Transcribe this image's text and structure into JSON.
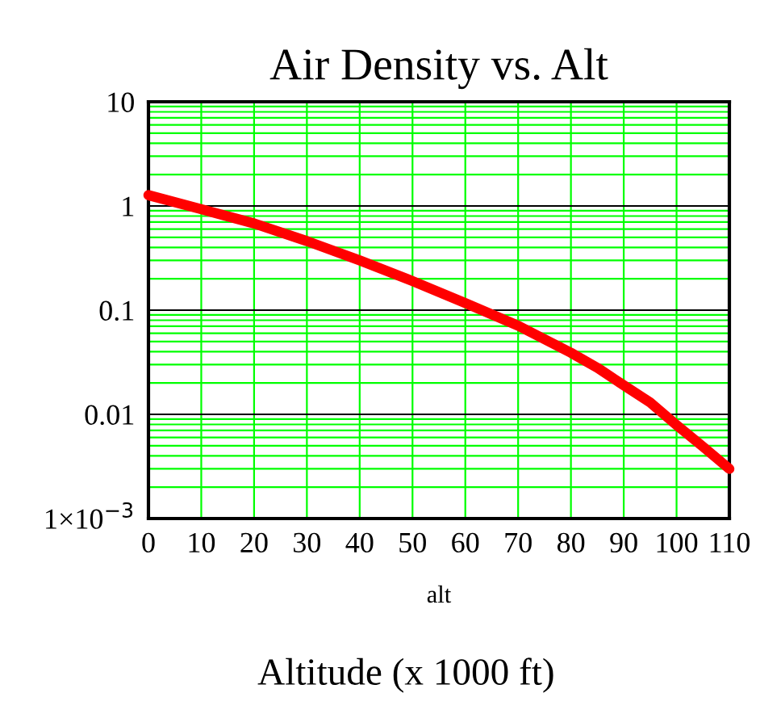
{
  "chart_data": {
    "type": "line",
    "title": "Air Density vs. Alt",
    "xlabel": "alt",
    "annotations": [
      "Altitude (x 1000 ft)"
    ],
    "x": [
      0,
      10,
      20,
      30,
      40,
      50,
      60,
      70,
      80,
      85,
      90,
      95,
      100,
      105,
      110
    ],
    "series": [
      {
        "color": "#ff0000",
        "values": [
          1.27,
          0.93,
          0.68,
          0.46,
          0.3,
          0.19,
          0.117,
          0.071,
          0.039,
          0.028,
          0.019,
          0.013,
          0.0079,
          0.0049,
          0.003
        ]
      }
    ],
    "log": "y",
    "xlim": [
      0,
      110
    ],
    "ylim": [
      0.001,
      10
    ],
    "xticks": [
      0,
      10,
      20,
      30,
      40,
      50,
      60,
      70,
      80,
      90,
      100,
      110
    ],
    "yticks": [
      {
        "value": 0.001,
        "label": "1×10$^{−3}$"
      },
      0.01,
      0.1,
      1,
      10
    ],
    "grid": true,
    "marker": "none",
    "line_style": "solid"
  }
}
